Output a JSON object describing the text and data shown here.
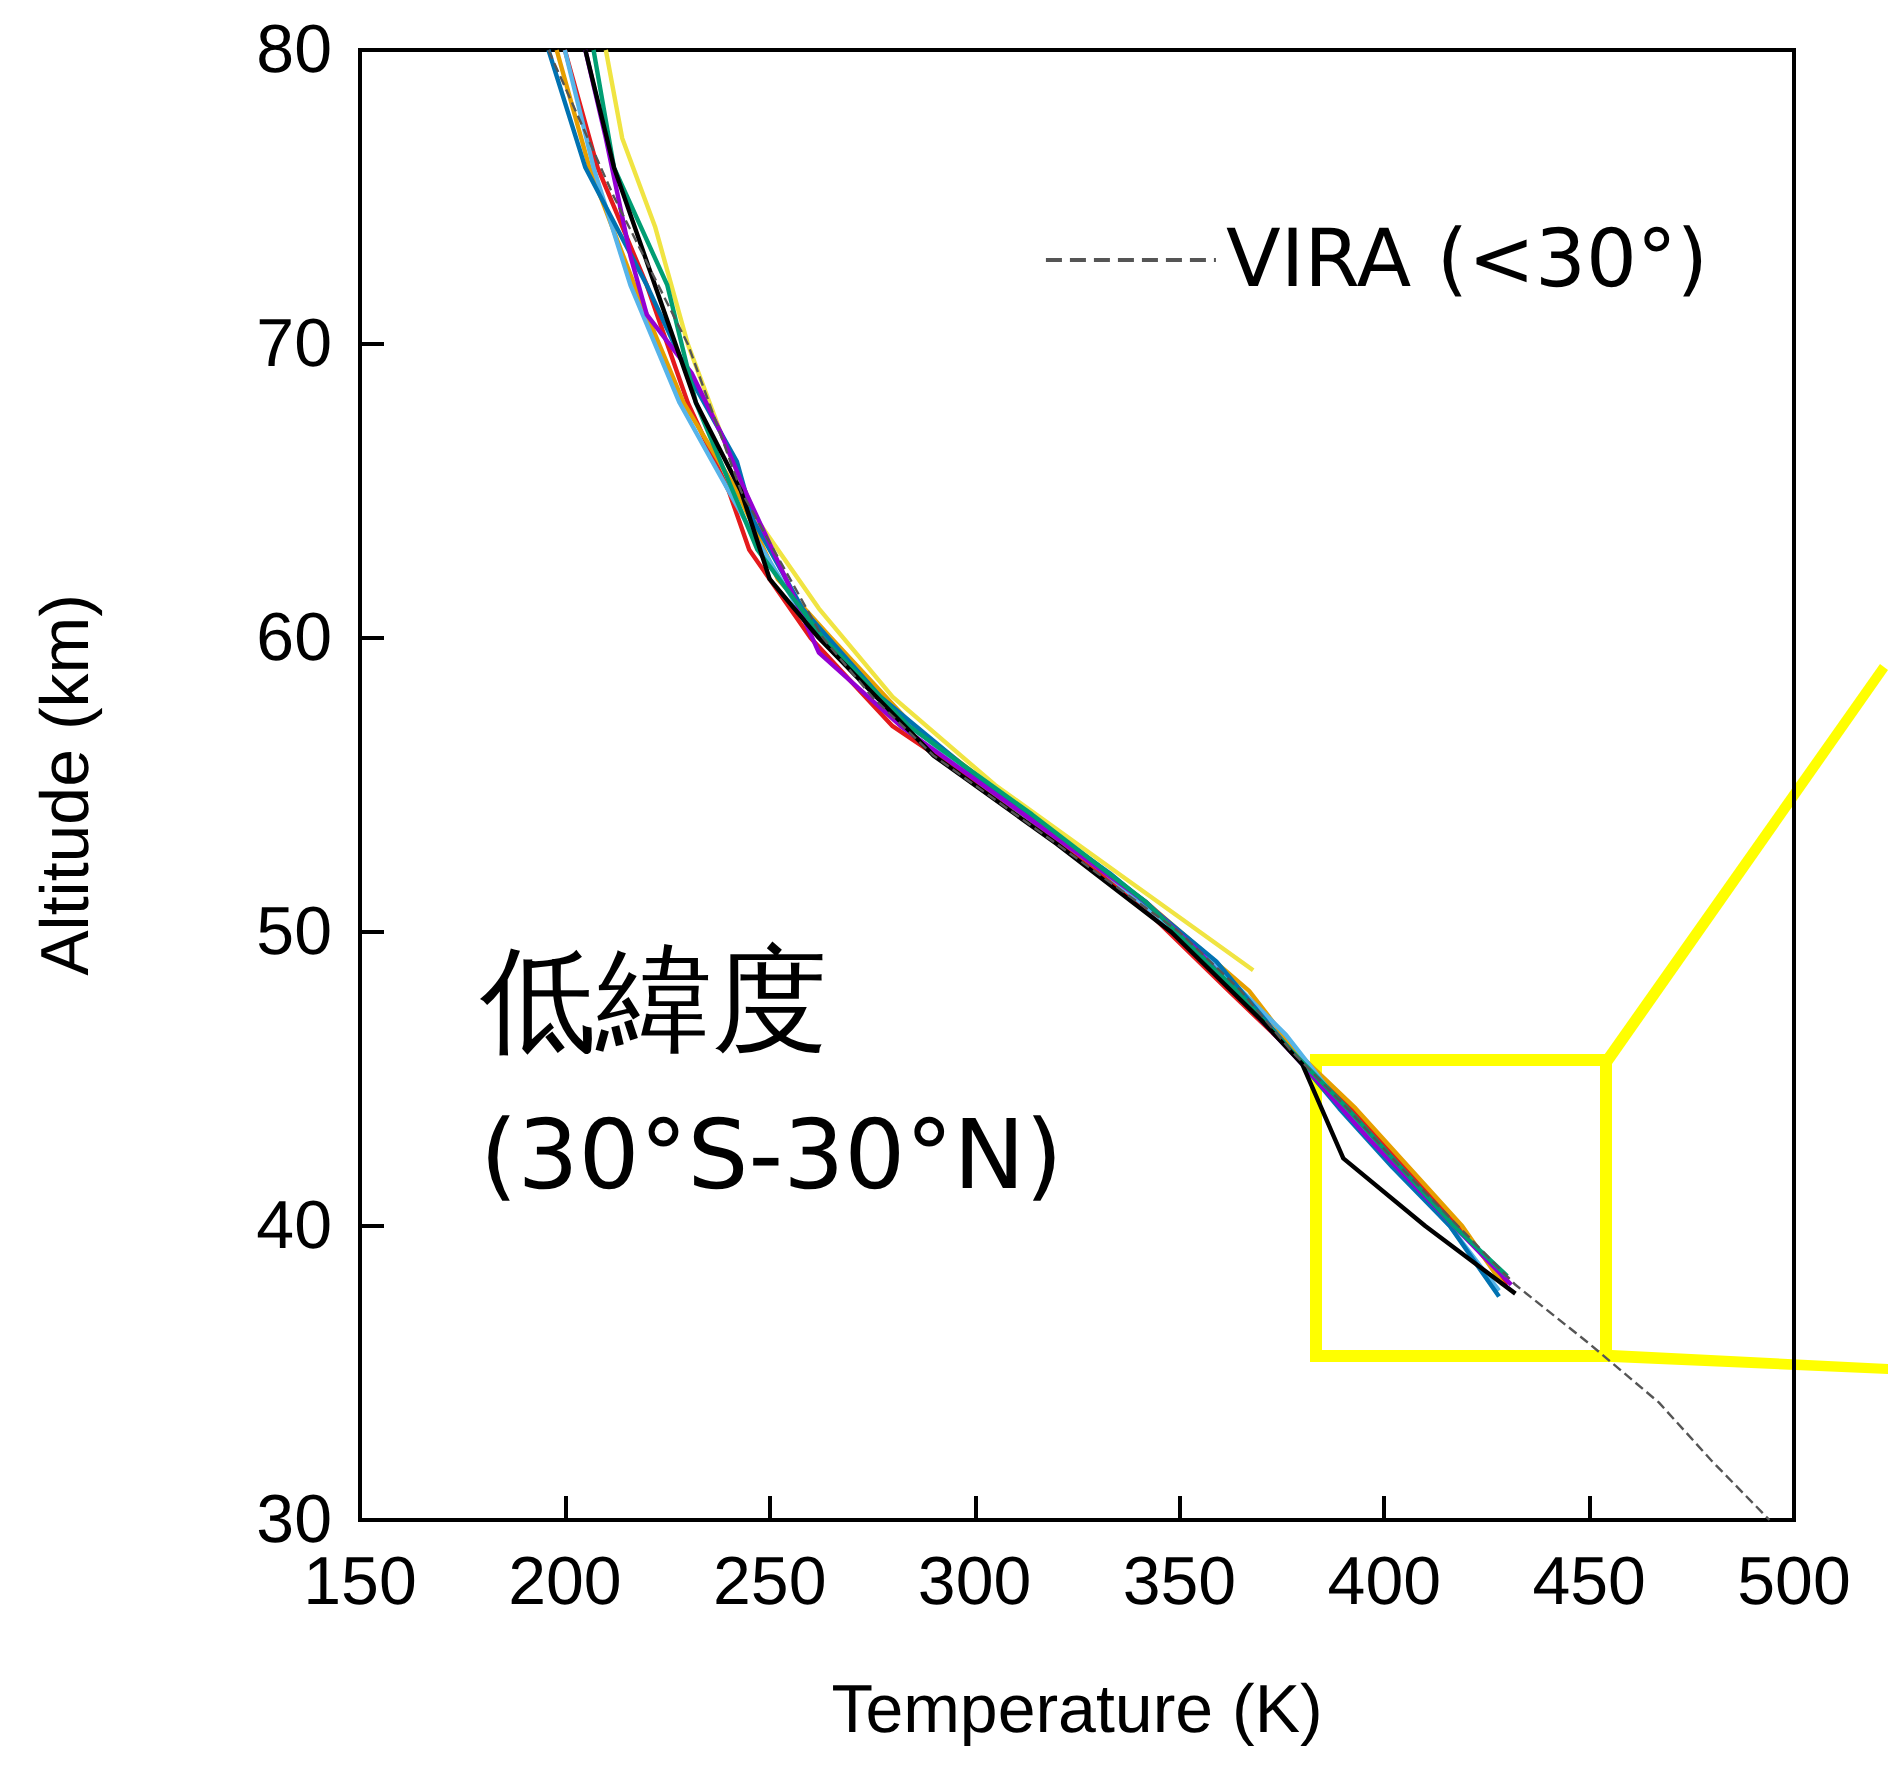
{
  "chart_data": {
    "type": "line",
    "xlabel": "Temperature (K)",
    "ylabel": "Altitude (km)",
    "xlim": [
      150,
      500
    ],
    "xticks": [
      150,
      200,
      250,
      300,
      350,
      400,
      450,
      500
    ],
    "ylim": [
      30,
      80
    ],
    "yticks": [
      30,
      40,
      50,
      60,
      70,
      80
    ],
    "grid": false,
    "legend": "top right",
    "marker": "none",
    "annotations": [
      "低緯度",
      "(30°S-30°N)"
    ],
    "series": [
      {
        "name": "VIRA (<30°)",
        "color": "#555555",
        "line_style": "dashed",
        "x": [
          196,
          212,
          230,
          243,
          263,
          275,
          290,
          300,
          310,
          330,
          350,
          365,
          377,
          391,
          404,
          418,
          432,
          450,
          467,
          480,
          494
        ],
        "values": [
          80,
          75,
          70,
          65,
          60,
          58,
          56,
          55,
          54,
          52,
          50,
          48,
          46,
          44,
          42,
          40,
          38,
          36,
          34,
          32,
          30
        ]
      },
      {
        "color": "#e41a1c",
        "x": [
          200,
          208,
          220,
          230,
          240,
          245,
          260,
          280,
          312,
          340,
          362,
          377,
          392,
          405,
          418,
          430
        ],
        "values": [
          80,
          76,
          72,
          68,
          65,
          63,
          60,
          57,
          54,
          51,
          48,
          46,
          44,
          42,
          40,
          38
        ]
      },
      {
        "color": "#e69f00",
        "x": [
          198,
          206,
          217,
          229,
          242,
          252,
          265,
          285,
          313,
          342,
          367,
          378,
          393,
          406,
          419,
          429
        ],
        "values": [
          80,
          76,
          72,
          68,
          65,
          62,
          60,
          57,
          54,
          51,
          48,
          46,
          44,
          42,
          40,
          38
        ]
      },
      {
        "color": "#f0e442",
        "x": [
          210,
          214,
          222,
          230,
          238,
          247,
          262,
          280,
          305,
          335,
          355,
          368
        ],
        "values": [
          80,
          77,
          74,
          70,
          67,
          64,
          61,
          58,
          55,
          52,
          50,
          48.7
        ]
      },
      {
        "color": "#56b4e9",
        "x": [
          200,
          207,
          216,
          228,
          236,
          244,
          257,
          276,
          302,
          332,
          358,
          376,
          390,
          403,
          416,
          428
        ],
        "values": [
          80,
          76,
          72,
          68,
          66,
          64,
          61,
          58,
          55,
          52,
          49,
          46.5,
          44,
          42,
          40,
          37.8
        ]
      },
      {
        "color": "#0072b2",
        "x": [
          196,
          205,
          220,
          230,
          242,
          246,
          258,
          277,
          303,
          333,
          359,
          377,
          389,
          402,
          416,
          428
        ],
        "values": [
          80,
          76,
          72,
          69,
          66,
          64,
          61,
          58,
          55,
          52,
          49,
          46,
          44,
          42,
          40,
          37.6
        ]
      },
      {
        "color": "#9400d3",
        "x": [
          205,
          210,
          216,
          220,
          231,
          238,
          244,
          254,
          262,
          282,
          312,
          342,
          355,
          370,
          380,
          396,
          410,
          431
        ],
        "values": [
          80,
          77,
          73,
          71,
          69,
          67,
          65,
          62,
          59.5,
          57,
          54,
          51,
          49.3,
          47,
          45.5,
          43,
          41,
          38
        ]
      },
      {
        "color": "#009e73",
        "x": [
          207,
          212,
          225,
          232,
          241,
          247,
          263,
          284,
          314,
          342,
          364,
          377,
          391,
          404,
          417,
          430
        ],
        "values": [
          80,
          76,
          72,
          68,
          65,
          63,
          60,
          57,
          54,
          51,
          48,
          46,
          44,
          42,
          40,
          38.3
        ]
      },
      {
        "color": "#000000",
        "x": [
          205,
          212,
          222,
          232,
          243,
          250,
          262,
          290,
          320,
          348,
          370,
          380,
          390,
          410,
          432
        ],
        "values": [
          80,
          76,
          72,
          68,
          65,
          62,
          60,
          56,
          53,
          50,
          47,
          45.5,
          42.3,
          40,
          37.7
        ]
      }
    ]
  }
}
